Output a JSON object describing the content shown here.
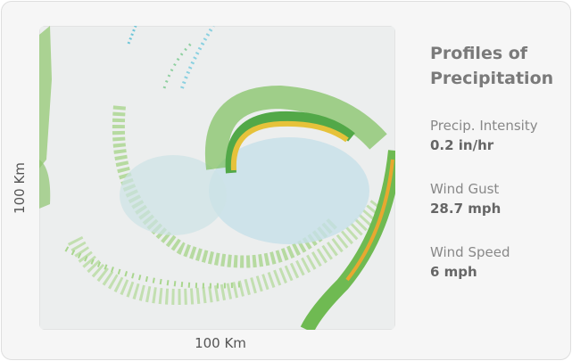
{
  "map": {
    "x_label": "100 Km",
    "y_label": "100 Km"
  },
  "panel": {
    "title": "Profiles of Precipitation",
    "stats": [
      {
        "label": "Precip. Intensity",
        "value": "0.2 in/hr"
      },
      {
        "label": "Wind Gust",
        "value": "28.7 mph"
      },
      {
        "label": "Wind Speed",
        "value": "6 mph"
      }
    ]
  }
}
